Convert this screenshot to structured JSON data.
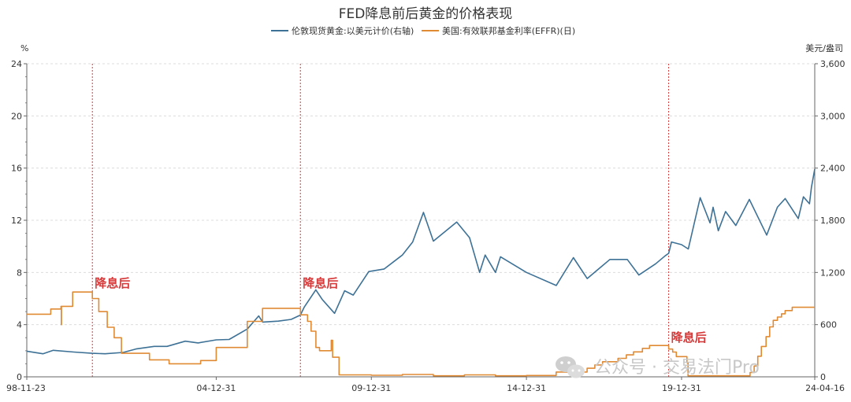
{
  "chart_data": {
    "type": "line",
    "title": "FED降息前后黄金的价格表现",
    "left_axis_unit": "%",
    "right_axis_unit": "美元/盎司",
    "left_ylim": [
      0,
      24
    ],
    "left_ticks": [
      "0",
      "4",
      "8",
      "12",
      "16",
      "20",
      "24"
    ],
    "right_ylim": [
      0,
      3600
    ],
    "right_ticks": [
      "0",
      "600",
      "1,200",
      "1,800",
      "2,400",
      "3,000",
      "3,600"
    ],
    "x_range": [
      "1998-11-23",
      "2024-04-16"
    ],
    "x_ticks": [
      {
        "date": "1998-11-23",
        "label": "98-11-23"
      },
      {
        "date": "2004-12-31",
        "label": "04-12-31"
      },
      {
        "date": "2009-12-31",
        "label": "09-12-31"
      },
      {
        "date": "2014-12-31",
        "label": "14-12-31"
      },
      {
        "date": "2019-12-31",
        "label": "19-12-31"
      },
      {
        "date": "2024-04-16",
        "label": "24-04-16"
      }
    ],
    "grid": true,
    "legend_position": "top-center",
    "series": [
      {
        "name": "伦敦现货黄金:以美元计价(右轴)",
        "axis": "right",
        "color": "#3d7196",
        "points": [
          [
            "1998-11-23",
            295
          ],
          [
            "1999-06-01",
            265
          ],
          [
            "1999-10-01",
            305
          ],
          [
            "2000-06-01",
            285
          ],
          [
            "2001-01-01",
            270
          ],
          [
            "2001-06-01",
            265
          ],
          [
            "2002-01-01",
            280
          ],
          [
            "2002-06-01",
            320
          ],
          [
            "2003-01-01",
            350
          ],
          [
            "2003-06-01",
            350
          ],
          [
            "2004-01-01",
            410
          ],
          [
            "2004-06-01",
            390
          ],
          [
            "2005-01-01",
            425
          ],
          [
            "2005-06-01",
            430
          ],
          [
            "2006-01-01",
            550
          ],
          [
            "2006-05-15",
            700
          ],
          [
            "2006-07-01",
            630
          ],
          [
            "2007-01-01",
            640
          ],
          [
            "2007-06-01",
            660
          ],
          [
            "2007-09-18",
            710
          ],
          [
            "2007-11-01",
            800
          ],
          [
            "2008-03-17",
            1000
          ],
          [
            "2008-06-01",
            890
          ],
          [
            "2008-10-24",
            730
          ],
          [
            "2009-02-20",
            990
          ],
          [
            "2009-06-01",
            940
          ],
          [
            "2009-12-01",
            1210
          ],
          [
            "2010-06-01",
            1240
          ],
          [
            "2010-12-31",
            1400
          ],
          [
            "2011-05-01",
            1550
          ],
          [
            "2011-09-06",
            1890
          ],
          [
            "2011-12-31",
            1560
          ],
          [
            "2012-10-01",
            1780
          ],
          [
            "2013-03-01",
            1600
          ],
          [
            "2013-06-28",
            1200
          ],
          [
            "2013-09-01",
            1400
          ],
          [
            "2013-12-31",
            1200
          ],
          [
            "2014-03-01",
            1380
          ],
          [
            "2014-12-31",
            1200
          ],
          [
            "2015-12-17",
            1050
          ],
          [
            "2016-07-06",
            1370
          ],
          [
            "2016-12-15",
            1130
          ],
          [
            "2017-09-08",
            1350
          ],
          [
            "2018-04-01",
            1350
          ],
          [
            "2018-08-16",
            1170
          ],
          [
            "2019-03-01",
            1300
          ],
          [
            "2019-06-20",
            1390
          ],
          [
            "2019-08-01",
            1420
          ],
          [
            "2019-09-04",
            1550
          ],
          [
            "2019-12-31",
            1520
          ],
          [
            "2020-03-19",
            1470
          ],
          [
            "2020-08-06",
            2060
          ],
          [
            "2020-11-30",
            1770
          ],
          [
            "2021-01-05",
            1950
          ],
          [
            "2021-03-08",
            1680
          ],
          [
            "2021-06-01",
            1900
          ],
          [
            "2021-09-30",
            1740
          ],
          [
            "2022-03-08",
            2040
          ],
          [
            "2022-09-28",
            1630
          ],
          [
            "2023-02-01",
            1950
          ],
          [
            "2023-05-04",
            2050
          ],
          [
            "2023-10-05",
            1820
          ],
          [
            "2023-12-04",
            2070
          ],
          [
            "2024-02-14",
            1990
          ],
          [
            "2024-03-08",
            2180
          ],
          [
            "2024-04-16",
            2390
          ]
        ]
      },
      {
        "name": "美国:有效联邦基金利率(EFFR)(日)",
        "axis": "left",
        "color": "#e08a34",
        "points": [
          [
            "1998-11-23",
            4.8
          ],
          [
            "1999-06-30",
            4.8
          ],
          [
            "1999-09-01",
            5.2
          ],
          [
            "1999-12-31",
            5.4
          ],
          [
            "2000-01-03",
            4.0
          ],
          [
            "2000-01-05",
            5.4
          ],
          [
            "2000-05-16",
            6.5
          ],
          [
            "2000-12-31",
            6.5
          ],
          [
            "2001-01-03",
            6.0
          ],
          [
            "2001-03-20",
            5.0
          ],
          [
            "2001-06-27",
            3.8
          ],
          [
            "2001-09-17",
            3.0
          ],
          [
            "2001-12-11",
            1.8
          ],
          [
            "2002-11-06",
            1.3
          ],
          [
            "2003-06-25",
            1.0
          ],
          [
            "2004-06-30",
            1.25
          ],
          [
            "2004-12-31",
            2.25
          ],
          [
            "2005-12-31",
            4.25
          ],
          [
            "2006-06-29",
            5.25
          ],
          [
            "2007-09-18",
            5.25
          ],
          [
            "2007-09-19",
            4.75
          ],
          [
            "2007-12-11",
            4.25
          ],
          [
            "2008-01-22",
            3.5
          ],
          [
            "2008-03-18",
            2.25
          ],
          [
            "2008-04-30",
            2.0
          ],
          [
            "2008-09-15",
            2.8
          ],
          [
            "2008-10-01",
            1.5
          ],
          [
            "2008-12-16",
            0.15
          ],
          [
            "2009-12-31",
            0.12
          ],
          [
            "2010-12-31",
            0.18
          ],
          [
            "2011-12-31",
            0.08
          ],
          [
            "2012-12-31",
            0.15
          ],
          [
            "2013-12-31",
            0.08
          ],
          [
            "2014-12-31",
            0.1
          ],
          [
            "2015-12-16",
            0.37
          ],
          [
            "2016-12-14",
            0.66
          ],
          [
            "2017-03-15",
            0.91
          ],
          [
            "2017-06-14",
            1.16
          ],
          [
            "2017-12-13",
            1.42
          ],
          [
            "2018-03-21",
            1.68
          ],
          [
            "2018-06-13",
            1.91
          ],
          [
            "2018-09-26",
            2.18
          ],
          [
            "2018-12-19",
            2.4
          ],
          [
            "2019-07-31",
            2.4
          ],
          [
            "2019-08-01",
            2.13
          ],
          [
            "2019-09-18",
            1.9
          ],
          [
            "2019-10-30",
            1.55
          ],
          [
            "2020-03-03",
            1.1
          ],
          [
            "2020-03-16",
            0.08
          ],
          [
            "2021-12-31",
            0.08
          ],
          [
            "2022-03-16",
            0.33
          ],
          [
            "2022-05-04",
            0.83
          ],
          [
            "2022-06-15",
            1.58
          ],
          [
            "2022-07-27",
            2.33
          ],
          [
            "2022-09-21",
            3.08
          ],
          [
            "2022-11-02",
            3.83
          ],
          [
            "2022-12-14",
            4.33
          ],
          [
            "2023-02-01",
            4.58
          ],
          [
            "2023-03-22",
            4.83
          ],
          [
            "2023-05-03",
            5.08
          ],
          [
            "2023-07-26",
            5.33
          ],
          [
            "2024-04-16",
            5.33
          ]
        ]
      }
    ],
    "annotations": [
      {
        "date": "2001-01-03",
        "text": "降息后",
        "color": "#d63a3a"
      },
      {
        "date": "2007-09-18",
        "text": "降息后",
        "color": "#d63a3a"
      },
      {
        "date": "2019-08-01",
        "text": "降息后",
        "color": "#d63a3a"
      }
    ]
  },
  "watermark": {
    "text": "公众号 · 交易法门Pro"
  }
}
